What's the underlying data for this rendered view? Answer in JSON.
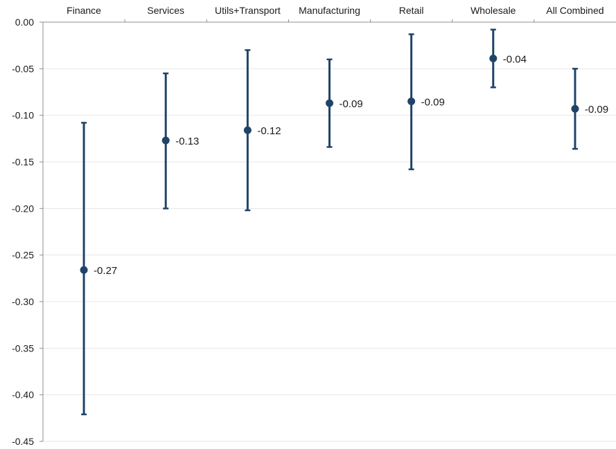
{
  "chart_data": {
    "type": "scatter",
    "title": "",
    "xlabel": "",
    "ylabel": "",
    "categories": [
      "Finance",
      "Services",
      "Utils+Transport",
      "Manufacturing",
      "Retail",
      "Wholesale",
      "All Combined"
    ],
    "values": [
      -0.266,
      -0.127,
      -0.116,
      -0.087,
      -0.085,
      -0.039,
      -0.093
    ],
    "lower": [
      -0.421,
      -0.2,
      -0.202,
      -0.134,
      -0.158,
      -0.07,
      -0.136
    ],
    "upper": [
      -0.108,
      -0.055,
      -0.03,
      -0.04,
      -0.013,
      -0.008,
      -0.05
    ],
    "value_labels": [
      "-0.27",
      "-0.13",
      "-0.12",
      "-0.09",
      "-0.09",
      "-0.04",
      "-0.09"
    ],
    "ylim": [
      -0.45,
      0.0
    ],
    "yticks": [
      0.0,
      -0.05,
      -0.1,
      -0.15,
      -0.2,
      -0.25,
      -0.3,
      -0.35,
      -0.4,
      -0.45
    ],
    "ytick_labels": [
      "0.00",
      "-0.05",
      "-0.10",
      "-0.15",
      "-0.20",
      "-0.25",
      "-0.30",
      "-0.35",
      "-0.40",
      "-0.45"
    ],
    "grid": true,
    "category_axis_position": "top",
    "colors": {
      "marker": "#1f4468",
      "grid": "#e6e6e6",
      "axis": "#8c8c8c"
    }
  }
}
